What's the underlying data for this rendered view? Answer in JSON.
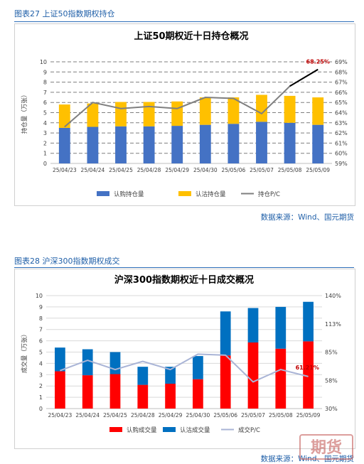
{
  "figures": [
    {
      "caption": "图表27 上证50指数期权持仓",
      "source": "数据来源：Wind、国元期货"
    },
    {
      "caption": "图表28 沪深300指数期权成交",
      "source": "数据来源：Wind、国元期货"
    }
  ],
  "watermark": "期货",
  "chart_data": [
    {
      "type": "bar",
      "stacked": true,
      "title": "上证50期权近十日持仓概况",
      "ylabel": "持仓量（万张）",
      "ylim": [
        0,
        10
      ],
      "yticks": [
        0,
        1,
        2,
        3,
        4,
        5,
        6,
        7,
        8,
        9,
        10
      ],
      "y2lim": [
        59,
        69
      ],
      "y2ticks": [
        "59%",
        "60%",
        "61%",
        "62%",
        "63%",
        "64%",
        "65%",
        "66%",
        "67%",
        "68%",
        "69%"
      ],
      "grid": true,
      "legend_position": "bottom",
      "categories": [
        "25/04/23",
        "25/04/24",
        "25/04/25",
        "25/04/28",
        "25/04/29",
        "25/04/30",
        "25/05/06",
        "25/05/07",
        "25/05/08",
        "25/05/09"
      ],
      "series": [
        {
          "name": "认购持仓量",
          "axis": "left",
          "color": "#4472c4",
          "values": [
            3.5,
            3.6,
            3.65,
            3.65,
            3.7,
            3.8,
            3.9,
            4.1,
            4.0,
            3.8
          ]
        },
        {
          "name": "认沽持仓量",
          "axis": "left",
          "color": "#ffc000",
          "values": [
            2.3,
            2.3,
            2.4,
            2.4,
            2.4,
            2.7,
            2.6,
            2.65,
            2.65,
            2.7
          ]
        },
        {
          "name": "持仓P/C",
          "axis": "right",
          "color": "#7f7f7f",
          "type": "line",
          "values": [
            62.6,
            65.0,
            64.4,
            64.6,
            64.4,
            65.5,
            65.4,
            63.9,
            66.6,
            68.25
          ]
        }
      ],
      "annotation": "68.25%"
    },
    {
      "type": "bar",
      "stacked": true,
      "title": "沪深300指数期权近十日成交概况",
      "ylabel": "成交量（万张）",
      "ylim": [
        0,
        10
      ],
      "yticks": [
        0,
        1,
        2,
        3,
        4,
        5,
        6,
        7,
        8,
        9,
        10
      ],
      "y2lim": [
        30,
        140
      ],
      "y2ticks": [
        "30%",
        "58%",
        "85%",
        "113%",
        "140%"
      ],
      "grid": true,
      "legend_position": "bottom",
      "categories": [
        "25/04/23",
        "25/04/24",
        "25/04/25",
        "25/04/28",
        "25/04/29",
        "25/04/30",
        "25/05/06",
        "25/05/07",
        "25/05/08",
        "25/05/09"
      ],
      "series": [
        {
          "name": "认购成交量",
          "axis": "left",
          "color": "#ff0000",
          "values": [
            3.3,
            2.95,
            3.05,
            2.1,
            2.2,
            2.6,
            4.7,
            5.85,
            5.3,
            5.95
          ]
        },
        {
          "name": "认沽成交量",
          "axis": "left",
          "color": "#0070c0",
          "values": [
            2.1,
            2.3,
            1.95,
            1.6,
            1.5,
            2.05,
            3.9,
            3.05,
            3.7,
            3.5
          ]
        },
        {
          "name": "成交P/C",
          "axis": "right",
          "color": "#a9b4d6",
          "type": "line",
          "values": [
            67,
            77,
            68,
            76,
            68,
            83,
            82,
            56,
            68,
            61.21
          ]
        }
      ],
      "annotation": "61.21%"
    }
  ]
}
